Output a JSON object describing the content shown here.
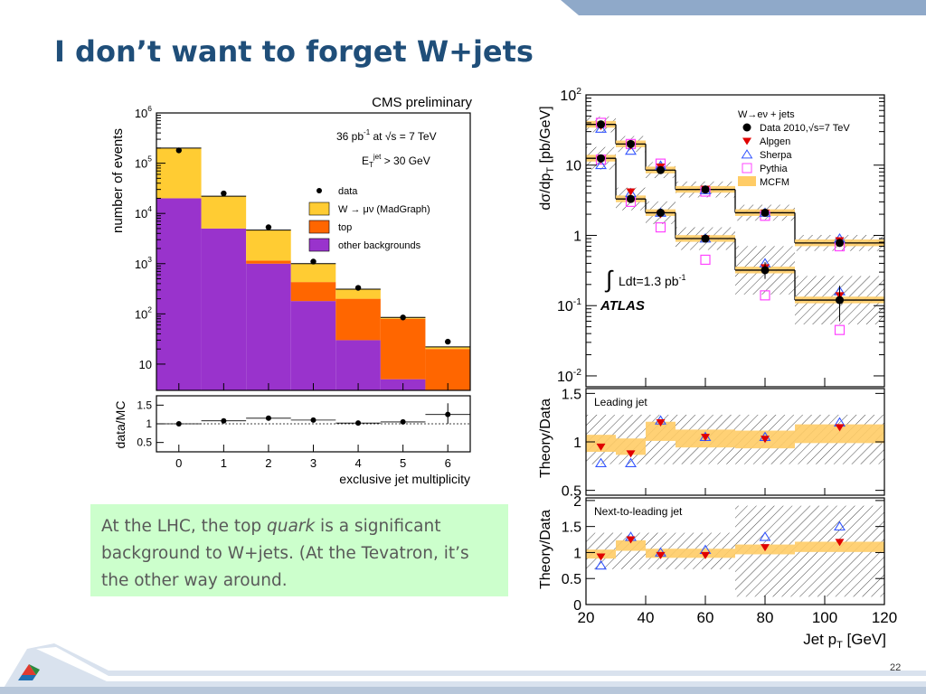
{
  "slide": {
    "title": "I don’t want to forget W+jets",
    "note_pre": "At the LHC, the top ",
    "note_em": "quark",
    "note_post": " is a significant background to W+jets.  (At the Tevatron, it’s the other way around.",
    "page_number": "22"
  },
  "colors": {
    "title": "#1f4e79",
    "note_bg": "#ccffcc",
    "wjets": "#ffcc33",
    "top": "#ff6600",
    "other": "#9933cc",
    "mcfm": "#ffcc66",
    "sherpa": "#3355ff",
    "pythia": "#ff44ff",
    "alpgen": "#e00000"
  },
  "chart_data": [
    {
      "type": "bar",
      "title": "CMS preliminary",
      "annotations": [
        "36 pb-1 at √s = 7 TeV",
        "ET^jet > 30 GeV"
      ],
      "lumi_text": "36 pb",
      "lumi_exp": "-1",
      "energy_text": "at √s = 7 TeV",
      "et_text": "E",
      "et_sub": "T",
      "et_sup": "jet",
      "et_rest": "> 30 GeV",
      "ylabel": "number of events",
      "xlabel": "exclusive jet multiplicity",
      "yscale": "log",
      "ylim": [
        3,
        1000000
      ],
      "y_ticks": [
        "10",
        "10^2",
        "10^3",
        "10^4",
        "10^5",
        "10^6"
      ],
      "x_ticks": [
        "0",
        "1",
        "2",
        "3",
        "4",
        "5",
        "6"
      ],
      "categories": [
        "0",
        "1",
        "2",
        "3",
        "4",
        "5",
        "6"
      ],
      "stack": [
        {
          "name": "other backgrounds",
          "values": [
            20000,
            5000,
            1000,
            180,
            30,
            5,
            3
          ]
        },
        {
          "name": "top",
          "values": [
            0,
            0,
            150,
            250,
            170,
            75,
            17
          ]
        },
        {
          "name": "W → μν (MadGraph)",
          "values": [
            180000,
            17000,
            3500,
            570,
            110,
            5,
            2
          ]
        }
      ],
      "series": [
        {
          "name": "data",
          "values": [
            180000,
            25000,
            5300,
            1100,
            330,
            85,
            28
          ]
        }
      ],
      "legend": [
        "data",
        "W → μν (MadGraph)",
        "top",
        "other backgrounds"
      ],
      "legend_position": "center-right",
      "ratio_panel": {
        "ylabel": "data/MC",
        "ylim": [
          0.25,
          1.75
        ],
        "y_ticks": [
          "0.5",
          "1",
          "1.5"
        ],
        "values": [
          1.0,
          1.08,
          1.15,
          1.1,
          1.02,
          1.05,
          1.25
        ]
      }
    },
    {
      "type": "scatter",
      "title": "",
      "legend_title": "W→eν + jets",
      "legend": [
        "Data 2010,√s=7 TeV",
        "Alpgen",
        "Sherpa",
        "Pythia",
        "MCFM"
      ],
      "ylabel": "dσ/dp_T [pb/GeV]",
      "ylabel_main": "dσ/dp",
      "ylabel_sub": "T",
      "ylabel_unit": " [pb/GeV]",
      "xlabel": "Jet p_T [GeV]",
      "xlabel_main": "Jet p",
      "xlabel_sub": "T",
      "xlabel_unit": " [GeV]",
      "lumi_text": "Ldt=1.3 pb",
      "lumi_exp": "-1",
      "experiment": "ATLAS",
      "yscale": "log",
      "ylim": [
        0.007,
        100
      ],
      "xlim": [
        20,
        120
      ],
      "x_ticks": [
        "20",
        "40",
        "60",
        "80",
        "100",
        "120"
      ],
      "y_ticks": [
        "10^-2",
        "10^-1",
        "1",
        "10",
        "10^2"
      ],
      "bins": [
        20,
        30,
        40,
        50,
        70,
        90,
        120
      ],
      "x": [
        25,
        35,
        45,
        60,
        80,
        105
      ],
      "series": [
        {
          "name": "Data 2010,√s=7 TeV (leading jet)",
          "values": [
            38,
            20,
            8.5,
            4.5,
            2.1,
            0.78
          ]
        },
        {
          "name": "Data 2010,√s=7 TeV (next-to-leading jet)",
          "values": [
            12.5,
            3.3,
            2.1,
            0.9,
            0.32,
            0.12
          ]
        },
        {
          "name": "Alpgen (leading jet)",
          "values": [
            36,
            19,
            9.5,
            4.6,
            2.1,
            0.85
          ]
        },
        {
          "name": "Alpgen (next-to-leading jet)",
          "values": [
            12,
            4.2,
            2.0,
            0.9,
            0.35,
            0.14
          ]
        },
        {
          "name": "Sherpa (leading jet)",
          "values": [
            33,
            16,
            9.8,
            4.4,
            2.1,
            0.9
          ]
        },
        {
          "name": "Sherpa (next-to-leading jet)",
          "values": [
            10,
            4.0,
            2.1,
            0.9,
            0.4,
            0.16
          ]
        },
        {
          "name": "Pythia (leading jet)",
          "values": [
            40,
            20,
            10.5,
            4.2,
            1.9,
            0.7
          ]
        },
        {
          "name": "Pythia (next-to-leading jet)",
          "values": [
            12,
            3.0,
            1.3,
            0.45,
            0.14,
            0.045
          ]
        }
      ],
      "ratio_panels": [
        {
          "label": "Leading jet",
          "ylabel": "Theory/Data",
          "ylim": [
            0.45,
            1.55
          ],
          "y_ticks": [
            "0.5",
            "1",
            "1.5"
          ],
          "alpgen": [
            0.95,
            0.88,
            1.2,
            1.05,
            1.03,
            1.15
          ],
          "sherpa": [
            0.78,
            0.78,
            1.22,
            1.05,
            1.05,
            1.2
          ]
        },
        {
          "label": "Next-to-leading jet",
          "ylabel": "Theory/Data",
          "ylim": [
            0,
            2.05
          ],
          "y_ticks": [
            "0",
            "0.5",
            "1",
            "1.5",
            "2"
          ],
          "alpgen": [
            0.92,
            1.25,
            0.95,
            0.95,
            1.1,
            1.2
          ],
          "sherpa": [
            0.75,
            1.3,
            1.0,
            1.05,
            1.3,
            1.5
          ]
        }
      ]
    }
  ]
}
